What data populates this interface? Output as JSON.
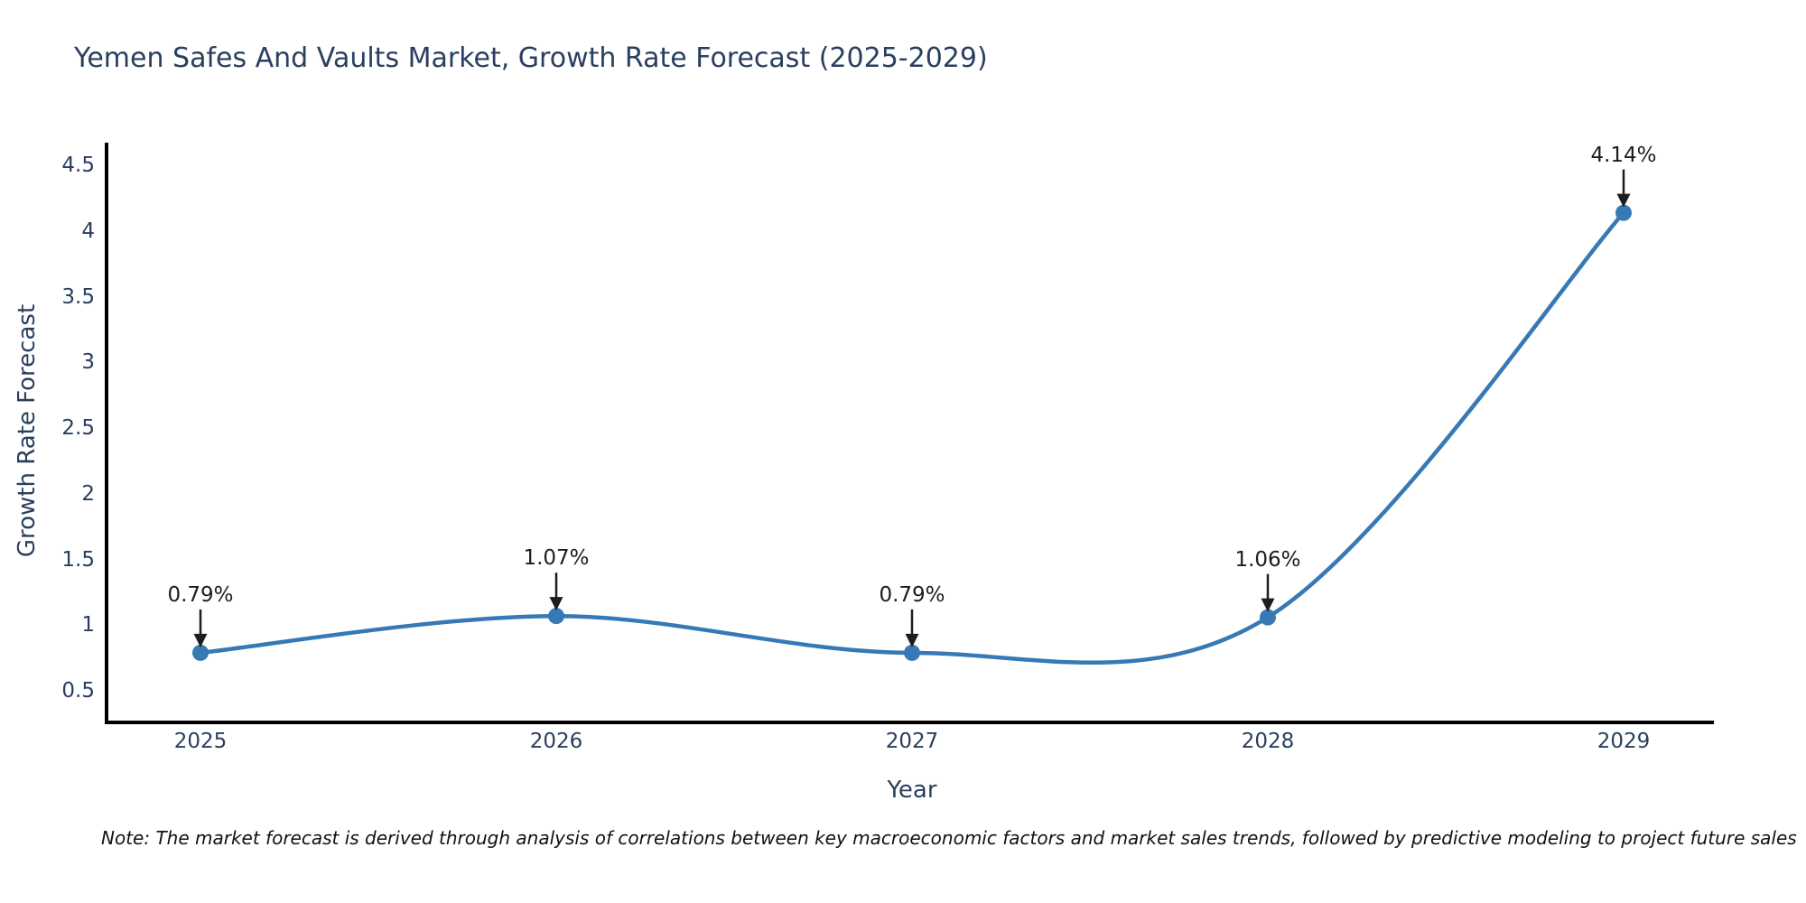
{
  "chart_data": {
    "type": "line",
    "title": "Yemen Safes And Vaults Market, Growth Rate Forecast (2025-2029)",
    "xlabel": "Year",
    "ylabel": "Growth Rate Forecast",
    "categories": [
      "2025",
      "2026",
      "2027",
      "2028",
      "2029"
    ],
    "values": [
      0.79,
      1.07,
      0.79,
      1.06,
      4.14
    ],
    "point_labels": [
      "0.79%",
      "1.07%",
      "0.79%",
      "1.06%",
      "4.14%"
    ],
    "yticks": [
      0.5,
      1,
      1.5,
      2,
      2.5,
      3,
      3.5,
      4,
      4.5
    ],
    "ytick_labels": [
      "0.5",
      "1",
      "1.5",
      "2",
      "2.5",
      "3",
      "3.5",
      "4",
      "4.5"
    ],
    "ylim": [
      0.26,
      4.66
    ],
    "line_shape": "spline",
    "markers": true,
    "grid": false,
    "legend": false,
    "colors": {
      "line": "#3679b4",
      "marker": "#3679b4",
      "axis": "#000000",
      "tick_text": "#2a3f5f",
      "annotation_text": "#1d1d1d",
      "annotation_arrow": "#1d1d1d",
      "background": "#ffffff"
    }
  },
  "note": "Note: The market forecast is derived through analysis of correlations between key macroeconomic factors and market sales trends, followed by predictive modeling to project future sales"
}
